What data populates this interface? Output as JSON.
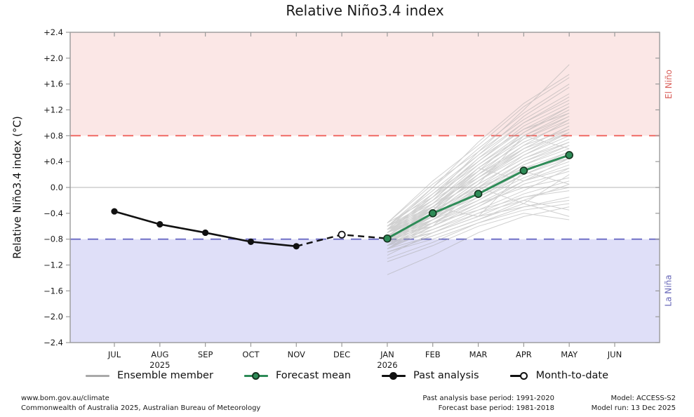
{
  "title": "Relative Niño3.4 index",
  "chart_data": {
    "type": "line",
    "title": "Relative Niño3.4 index",
    "ylabel": "Relative Niño3.4 index (°C)",
    "ylim": [
      -2.4,
      2.4
    ],
    "x_categories": [
      "JUL",
      "AUG",
      "SEP",
      "OCT",
      "NOV",
      "DEC",
      "JAN",
      "FEB",
      "MAR",
      "APR",
      "MAY",
      "JUN"
    ],
    "x_year_labels": {
      "1": "2025",
      "6": "2026"
    },
    "ytick_values": [
      2.4,
      2.0,
      1.6,
      1.2,
      0.8,
      0.4,
      0.0,
      -0.4,
      -0.8,
      -1.2,
      -1.6,
      -2.0,
      -2.4
    ],
    "ytick_labels": [
      "+2.4",
      "+2.0",
      "+1.6",
      "+1.2",
      "+0.8",
      "+0.4",
      "0.0",
      "−0.4",
      "−0.8",
      "−1.2",
      "−1.6",
      "−2.0",
      "−2.4"
    ],
    "thresholds": {
      "el_nino": 0.8,
      "la_nina": -0.8
    },
    "band_labels": {
      "el_nino": "El Niño",
      "la_nina": "La Niña"
    },
    "zero_line": 0.0,
    "grid": false,
    "legend_position": "bottom",
    "series": [
      {
        "name": "Past analysis",
        "x": [
          "JUL",
          "AUG",
          "SEP",
          "OCT",
          "NOV"
        ],
        "values": [
          -0.37,
          -0.57,
          -0.7,
          -0.84,
          -0.91
        ]
      },
      {
        "name": "Month-to-date",
        "x": [
          "DEC"
        ],
        "values": [
          -0.73
        ]
      },
      {
        "name": "Forecast mean",
        "x": [
          "JAN",
          "FEB",
          "MAR",
          "APR",
          "MAY"
        ],
        "values": [
          -0.79,
          -0.4,
          -0.1,
          0.26,
          0.5
        ]
      }
    ],
    "ensemble_x": [
      "JAN",
      "FEB",
      "MAR",
      "APR",
      "MAY"
    ],
    "ensemble_members": [
      [
        -0.75,
        -0.55,
        -0.35,
        -0.15,
        -0.05
      ],
      [
        -0.85,
        -0.7,
        -0.45,
        -0.3,
        -0.2
      ],
      [
        -0.65,
        -0.35,
        0.0,
        0.3,
        0.45
      ],
      [
        -0.95,
        -0.6,
        -0.25,
        0.1,
        0.35
      ],
      [
        -0.8,
        -0.45,
        -0.05,
        0.4,
        0.7
      ],
      [
        -0.7,
        -0.25,
        0.15,
        0.55,
        0.85
      ],
      [
        -0.9,
        -0.5,
        -0.1,
        0.35,
        0.6
      ],
      [
        -0.6,
        -0.2,
        0.25,
        0.7,
        1.0
      ],
      [
        -1.0,
        -0.75,
        -0.5,
        -0.2,
        0.05
      ],
      [
        -0.85,
        -0.4,
        0.1,
        0.6,
        0.95
      ],
      [
        -0.75,
        -0.3,
        0.2,
        0.75,
        1.1
      ],
      [
        -0.65,
        -0.15,
        0.35,
        0.85,
        1.2
      ],
      [
        -0.95,
        -0.55,
        -0.15,
        0.25,
        0.55
      ],
      [
        -0.8,
        -0.35,
        0.15,
        0.65,
        1.05
      ],
      [
        -0.7,
        -0.1,
        0.4,
        0.95,
        1.3
      ],
      [
        -0.55,
        0.05,
        0.55,
        1.05,
        1.45
      ],
      [
        -1.1,
        -0.85,
        -0.55,
        -0.35,
        -0.25
      ],
      [
        -0.9,
        -0.6,
        -0.3,
        0.05,
        0.25
      ],
      [
        -0.8,
        -0.5,
        -0.2,
        0.15,
        0.4
      ],
      [
        -0.7,
        -0.4,
        0.05,
        0.45,
        0.75
      ],
      [
        -0.6,
        -0.25,
        0.3,
        0.8,
        1.15
      ],
      [
        -0.85,
        -0.55,
        -0.25,
        0.0,
        0.15
      ],
      [
        -0.75,
        -0.45,
        -0.15,
        0.2,
        0.5
      ],
      [
        -0.65,
        -0.3,
        0.1,
        0.5,
        0.8
      ],
      [
        -1.05,
        -0.7,
        -0.4,
        -0.1,
        0.1
      ],
      [
        -0.95,
        -0.65,
        -0.35,
        -0.05,
        0.3
      ],
      [
        -0.85,
        -0.5,
        -0.05,
        0.35,
        0.65
      ],
      [
        -0.75,
        -0.35,
        0.25,
        0.85,
        1.25
      ],
      [
        -0.6,
        -0.05,
        0.5,
        1.1,
        1.55
      ],
      [
        -0.55,
        0.1,
        0.65,
        1.25,
        1.7
      ],
      [
        -0.65,
        0.0,
        0.6,
        1.15,
        1.6
      ],
      [
        -0.7,
        -0.2,
        0.45,
        1.0,
        1.4
      ],
      [
        -1.35,
        -1.05,
        -0.7,
        -0.45,
        -0.3
      ],
      [
        -1.0,
        -0.8,
        -0.55,
        -0.3,
        -0.15
      ],
      [
        -0.9,
        -0.7,
        -0.45,
        -0.15,
        0.0
      ],
      [
        -0.8,
        -0.6,
        -0.3,
        0.1,
        0.3
      ],
      [
        -0.7,
        -0.45,
        0.0,
        0.4,
        0.65
      ],
      [
        -0.6,
        -0.3,
        0.2,
        0.65,
        0.9
      ],
      [
        -0.85,
        -0.65,
        -0.4,
        -0.2,
        -0.35
      ],
      [
        -0.95,
        -0.75,
        -0.5,
        -0.25,
        -0.45
      ],
      [
        -0.75,
        -0.5,
        -0.1,
        0.3,
        0.55
      ],
      [
        -0.65,
        -0.35,
        0.15,
        0.6,
        0.85
      ],
      [
        -0.55,
        -0.15,
        0.45,
        0.9,
        1.15
      ],
      [
        -0.9,
        -0.55,
        -0.2,
        0.2,
        0.45
      ],
      [
        -0.8,
        -0.4,
        0.1,
        0.55,
        0.9
      ],
      [
        -0.7,
        -0.3,
        0.3,
        0.75,
        1.05
      ],
      [
        -0.6,
        -0.1,
        0.5,
        1.0,
        1.35
      ],
      [
        -1.15,
        -0.9,
        -0.6,
        -0.4,
        -0.5
      ],
      [
        -0.85,
        -0.45,
        0.05,
        0.45,
        0.7
      ],
      [
        -0.75,
        -0.25,
        0.35,
        0.8,
        1.1
      ],
      [
        -0.65,
        -0.2,
        0.4,
        0.9,
        1.25
      ],
      [
        -0.95,
        -0.5,
        0.0,
        0.5,
        0.85
      ],
      [
        -0.8,
        -0.3,
        0.25,
        0.7,
        1.0
      ],
      [
        -0.7,
        -0.15,
        0.55,
        1.2,
        1.9
      ],
      [
        -0.6,
        0.0,
        0.7,
        1.3,
        1.75
      ],
      [
        -0.9,
        -0.4,
        0.2,
        0.6,
        0.95
      ],
      [
        -0.7,
        -0.35,
        0.3,
        0.1,
        0.45
      ],
      [
        -0.85,
        -0.3,
        -0.45,
        0.25,
        0.05
      ],
      [
        -0.65,
        -0.45,
        0.05,
        0.8,
        0.6
      ],
      [
        -0.75,
        -0.6,
        0.0,
        -0.25,
        0.2
      ]
    ],
    "colors": {
      "el_nino_band": "#fbe7e6",
      "la_nina_band": "#dfdff8",
      "el_nino_line": "#f0625c",
      "la_nina_line": "#6a6ac4",
      "el_nino_text": "#d95f5a",
      "la_nina_text": "#6767b8",
      "forecast_mean": "#2e8b57",
      "forecast_mean_edge": "#15331f",
      "past_analysis": "#111111",
      "ensemble": "#ababab",
      "zero_line": "#c4c4c4",
      "frame": "#9a9a9a",
      "tick_text": "#1a1a1a"
    }
  },
  "legend": {
    "items": [
      {
        "label": "Ensemble member"
      },
      {
        "label": "Forecast mean"
      },
      {
        "label": "Past analysis"
      },
      {
        "label": "Month-to-date"
      }
    ]
  },
  "footer": {
    "left_line1": "www.bom.gov.au/climate",
    "left_line2": "Commonwealth of Australia 2025, Australian Bureau of Meteorology",
    "center_line1": "Past analysis base period: 1991-2020",
    "center_line2": "Forecast base period: 1981-2018",
    "right_line1": "Model: ACCESS-S2",
    "right_line2": "Model run: 13 Dec 2025"
  }
}
